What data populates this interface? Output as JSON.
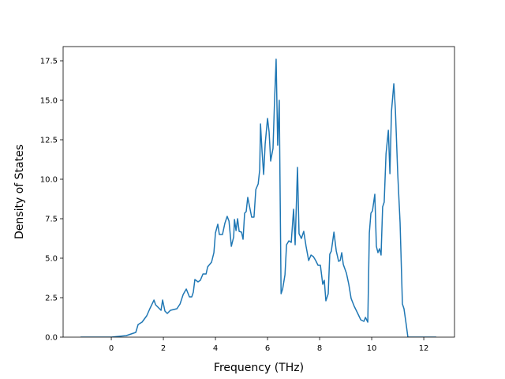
{
  "chart_data": {
    "type": "line",
    "xlabel": "Frequency (THz)",
    "ylabel": "Density of States",
    "xlim": [
      -1.85,
      13.18
    ],
    "ylim": [
      0,
      18.4
    ],
    "xticks": [
      0,
      2,
      4,
      6,
      8,
      10,
      12
    ],
    "yticks": [
      {
        "value": 0,
        "label": "0.0"
      },
      {
        "value": 2.5,
        "label": "2.5"
      },
      {
        "value": 5,
        "label": "5.0"
      },
      {
        "value": 7.5,
        "label": "7.5"
      },
      {
        "value": 10,
        "label": "10.0"
      },
      {
        "value": 12.5,
        "label": "12.5"
      },
      {
        "value": 15,
        "label": "15.0"
      },
      {
        "value": 17.5,
        "label": "17.5"
      }
    ],
    "series": [
      {
        "color": "#1f77b4",
        "x": [
          -1.18,
          0,
          0.58,
          0.94,
          1.03,
          1.18,
          1.36,
          1.48,
          1.64,
          1.7,
          1.91,
          1.97,
          2.06,
          2.15,
          2.27,
          2.52,
          2.64,
          2.76,
          2.88,
          3.0,
          3.09,
          3.15,
          3.21,
          3.33,
          3.42,
          3.52,
          3.64,
          3.7,
          3.85,
          3.94,
          4.0,
          4.09,
          4.15,
          4.27,
          4.36,
          4.45,
          4.52,
          4.61,
          4.7,
          4.73,
          4.79,
          4.85,
          4.91,
          5.0,
          5.06,
          5.12,
          5.18,
          5.24,
          5.33,
          5.39,
          5.48,
          5.55,
          5.64,
          5.7,
          5.73,
          5.79,
          5.85,
          5.91,
          6.0,
          6.06,
          6.12,
          6.21,
          6.27,
          6.33,
          6.39,
          6.45,
          6.52,
          6.58,
          6.67,
          6.73,
          6.82,
          6.91,
          7.0,
          7.06,
          7.15,
          7.21,
          7.3,
          7.39,
          7.48,
          7.58,
          7.67,
          7.76,
          7.85,
          7.94,
          8.03,
          8.12,
          8.18,
          8.24,
          8.33,
          8.39,
          8.45,
          8.55,
          8.64,
          8.73,
          8.79,
          8.85,
          8.91,
          9.03,
          9.12,
          9.21,
          9.33,
          9.45,
          9.58,
          9.7,
          9.76,
          9.85,
          9.91,
          9.97,
          10.03,
          10.12,
          10.18,
          10.24,
          10.3,
          10.36,
          10.42,
          10.48,
          10.55,
          10.64,
          10.7,
          10.76,
          10.85,
          10.91,
          11.0,
          11.09,
          11.18,
          11.24,
          11.33,
          11.39,
          12.48
        ],
        "values": [
          0,
          0,
          0.1,
          0.3,
          0.8,
          0.95,
          1.35,
          1.8,
          2.35,
          2.05,
          1.7,
          2.35,
          1.65,
          1.5,
          1.7,
          1.8,
          2.1,
          2.7,
          3.05,
          2.55,
          2.55,
          2.85,
          3.65,
          3.5,
          3.6,
          4.0,
          4.0,
          4.45,
          4.75,
          5.35,
          6.6,
          7.15,
          6.5,
          6.5,
          7.2,
          7.65,
          7.35,
          5.75,
          6.35,
          7.45,
          6.75,
          7.5,
          6.7,
          6.65,
          6.2,
          7.85,
          7.95,
          8.85,
          8.1,
          7.6,
          7.6,
          9.35,
          9.7,
          10.6,
          13.5,
          11.75,
          10.3,
          12.25,
          13.85,
          13.0,
          11.15,
          11.95,
          15.0,
          17.6,
          12.15,
          15.0,
          2.75,
          3.05,
          3.95,
          5.85,
          6.1,
          6.0,
          8.1,
          5.85,
          10.75,
          6.55,
          6.25,
          6.7,
          5.75,
          4.85,
          5.2,
          5.1,
          4.85,
          4.55,
          4.55,
          3.35,
          3.6,
          2.3,
          2.75,
          5.25,
          5.45,
          6.65,
          5.45,
          4.8,
          4.85,
          5.35,
          4.6,
          4.05,
          3.35,
          2.45,
          1.95,
          1.55,
          1.1,
          1.0,
          1.25,
          0.95,
          6.6,
          7.85,
          8.0,
          9.05,
          5.75,
          5.35,
          5.6,
          5.2,
          8.25,
          8.55,
          11.6,
          13.1,
          10.35,
          14.3,
          16.05,
          14.4,
          10.35,
          7.25,
          2.1,
          1.8,
          0.75,
          0,
          0
        ]
      }
    ]
  }
}
